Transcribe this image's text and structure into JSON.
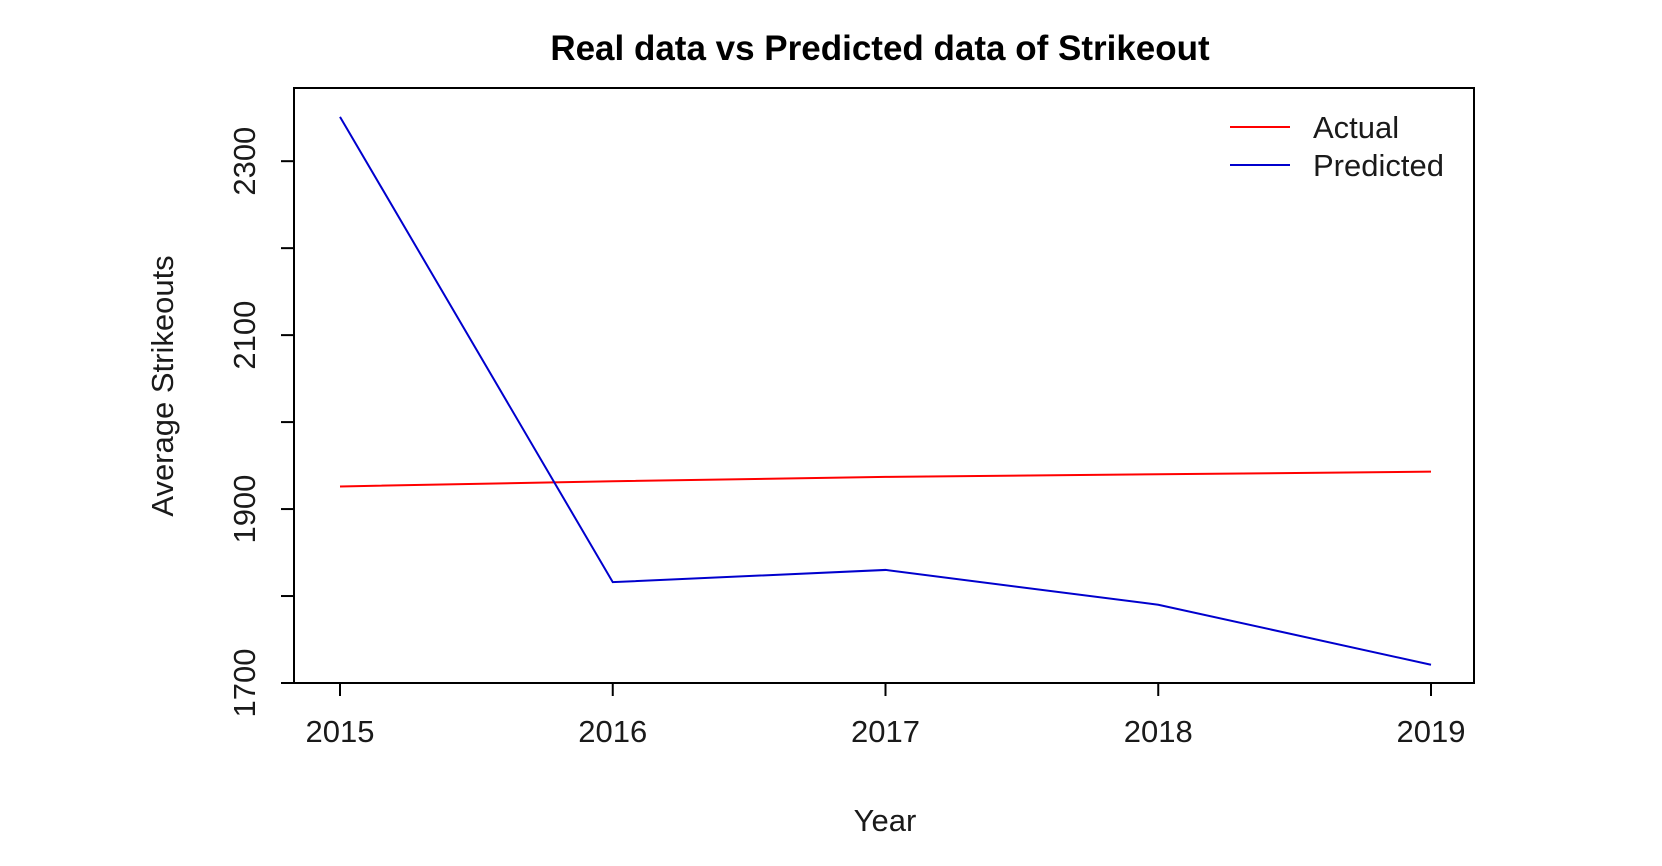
{
  "chart_data": {
    "type": "line",
    "title": "Real data vs Predicted data of Strikeout",
    "xlabel": "Year",
    "ylabel": "Average Strikeouts",
    "x": [
      2015,
      2016,
      2017,
      2018,
      2019
    ],
    "xlim": [
      2015,
      2019
    ],
    "ylim": [
      1700,
      2360
    ],
    "yticks": [
      1700,
      1900,
      2100,
      2300
    ],
    "yticks_minor": [
      1800,
      2000,
      2200
    ],
    "grid": false,
    "legend_position": "top-right",
    "series": [
      {
        "name": "Actual",
        "color": "#ff0000",
        "values": [
          1926,
          1932,
          1937,
          1940,
          1943
        ]
      },
      {
        "name": "Predicted",
        "color": "#0000cd",
        "values": [
          2351,
          1816,
          1830,
          1790,
          1721
        ]
      }
    ]
  }
}
